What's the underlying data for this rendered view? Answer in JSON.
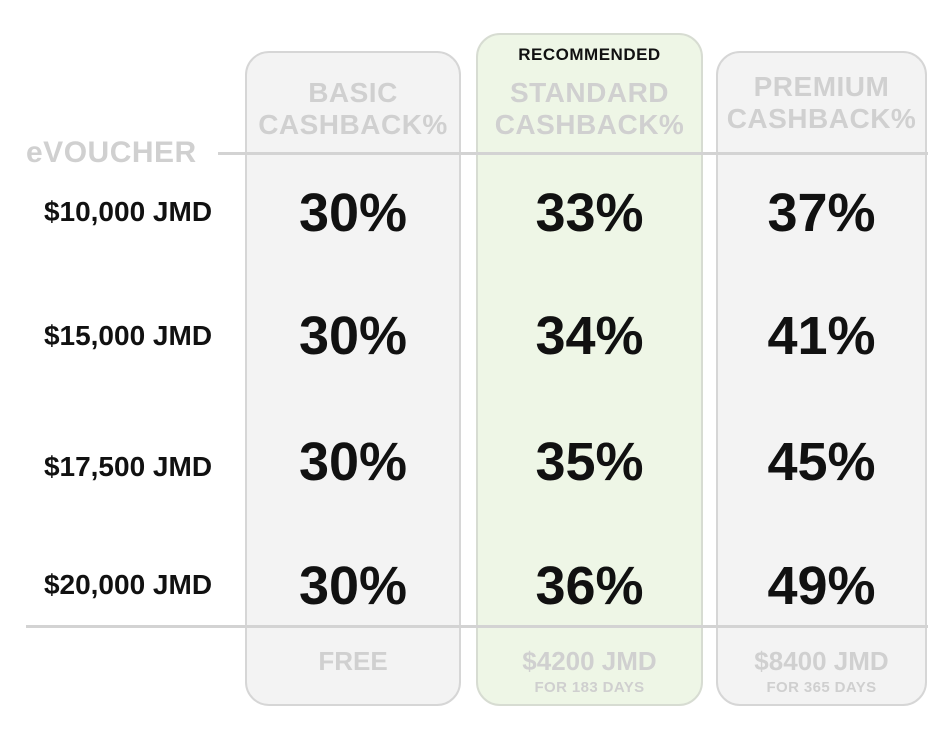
{
  "recommended_label": "RECOMMENDED",
  "evoucher_label": "eVOUCHER",
  "plans": [
    {
      "line1": "BASIC",
      "line2": "CASHBACK%",
      "price": "FREE",
      "period": ""
    },
    {
      "line1": "STANDARD",
      "line2": "CASHBACK%",
      "price": "$4200 JMD",
      "period": "FOR 183 DAYS"
    },
    {
      "line1": "PREMIUM",
      "line2": "CASHBACK%",
      "price": "$8400 JMD",
      "period": "FOR 365 DAYS"
    }
  ],
  "rows": [
    {
      "voucher": "$10,000 JMD",
      "basic": "30%",
      "standard": "33%",
      "premium": "37%"
    },
    {
      "voucher": "$15,000 JMD",
      "basic": "30%",
      "standard": "34%",
      "premium": "41%"
    },
    {
      "voucher": "$17,500 JMD",
      "basic": "30%",
      "standard": "35%",
      "premium": "45%"
    },
    {
      "voucher": "$20,000 JMD",
      "basic": "30%",
      "standard": "36%",
      "premium": "49%"
    }
  ],
  "colors": {
    "recommended_bg": "#eef6e6",
    "muted_text": "#d0d0d0",
    "main_text": "#111111"
  }
}
